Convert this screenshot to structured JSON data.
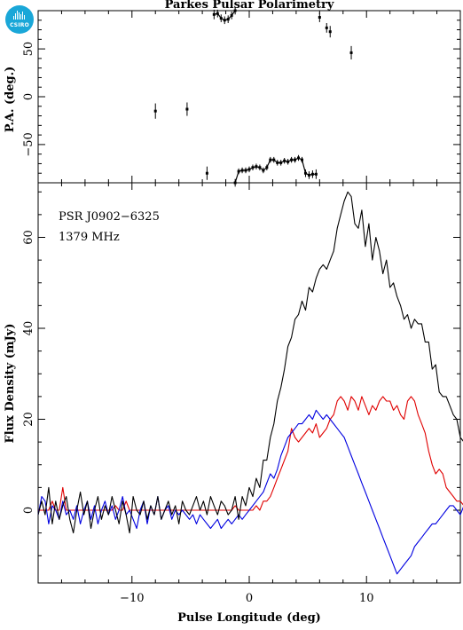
{
  "logo": {
    "text": "CSIRO",
    "color": "#1aa7d8"
  },
  "chart_data": [
    {
      "type": "scatter",
      "panel": "position-angle",
      "title": "Parkes Pulsar Polarimetry",
      "ylabel": "P.A. (deg.)",
      "xlim": [
        -18,
        18
      ],
      "ylim": [
        -90,
        90
      ],
      "yticks": [
        -50,
        0,
        50
      ],
      "grid": false,
      "color": "#000000",
      "points": [
        {
          "x": -8.0,
          "y": -15,
          "err": 8
        },
        {
          "x": -5.3,
          "y": -13,
          "err": 7
        },
        {
          "x": -3.6,
          "y": -80,
          "err": 7
        },
        {
          "x": -3.0,
          "y": 86,
          "err": 5
        },
        {
          "x": -2.7,
          "y": 87,
          "err": 4
        },
        {
          "x": -2.4,
          "y": 82,
          "err": 4
        },
        {
          "x": -2.1,
          "y": 80,
          "err": 4
        },
        {
          "x": -1.8,
          "y": 81,
          "err": 4
        },
        {
          "x": -1.5,
          "y": 85,
          "err": 4
        },
        {
          "x": -1.2,
          "y": 90,
          "err": 4
        },
        {
          "x": -1.2,
          "y": -90,
          "err": 4
        },
        {
          "x": -0.9,
          "y": -78,
          "err": 3
        },
        {
          "x": -0.6,
          "y": -77,
          "err": 3
        },
        {
          "x": -0.3,
          "y": -77,
          "err": 3
        },
        {
          "x": 0.0,
          "y": -76,
          "err": 3
        },
        {
          "x": 0.3,
          "y": -74,
          "err": 3
        },
        {
          "x": 0.6,
          "y": -73,
          "err": 3
        },
        {
          "x": 0.9,
          "y": -74,
          "err": 3
        },
        {
          "x": 1.2,
          "y": -77,
          "err": 3
        },
        {
          "x": 1.5,
          "y": -74,
          "err": 3
        },
        {
          "x": 1.8,
          "y": -66,
          "err": 3
        },
        {
          "x": 2.1,
          "y": -66,
          "err": 3
        },
        {
          "x": 2.4,
          "y": -69,
          "err": 3
        },
        {
          "x": 2.7,
          "y": -69,
          "err": 3
        },
        {
          "x": 3.0,
          "y": -67,
          "err": 3
        },
        {
          "x": 3.3,
          "y": -68,
          "err": 3
        },
        {
          "x": 3.6,
          "y": -66,
          "err": 3
        },
        {
          "x": 3.9,
          "y": -66,
          "err": 3
        },
        {
          "x": 4.2,
          "y": -64,
          "err": 3
        },
        {
          "x": 4.5,
          "y": -66,
          "err": 3
        },
        {
          "x": 4.8,
          "y": -80,
          "err": 4
        },
        {
          "x": 5.1,
          "y": -82,
          "err": 4
        },
        {
          "x": 5.4,
          "y": -81,
          "err": 4
        },
        {
          "x": 5.7,
          "y": -81,
          "err": 5
        },
        {
          "x": 6.0,
          "y": 83,
          "err": 5
        },
        {
          "x": 6.6,
          "y": 72,
          "err": 5
        },
        {
          "x": 6.9,
          "y": 68,
          "err": 6
        },
        {
          "x": 8.7,
          "y": 46,
          "err": 7
        }
      ]
    },
    {
      "type": "line",
      "panel": "profile",
      "annotations": [
        "PSR J0902−6325",
        "1379 MHz"
      ],
      "xlabel": "Pulse Longitude (deg)",
      "ylabel": "Flux Density (mJy)",
      "xlim": [
        -18,
        18
      ],
      "ylim": [
        -16,
        72
      ],
      "xticks": [
        -10,
        0,
        10
      ],
      "yticks": [
        0,
        20,
        40,
        60
      ],
      "grid": false,
      "x_start": -18,
      "x_step": 0.3,
      "series": [
        {
          "color": "#000000",
          "values": [
            -1.0,
            2.0,
            -1.0,
            5.0,
            -3.0,
            2.0,
            -2.0,
            1.0,
            3.0,
            -2.0,
            -5.0,
            0.0,
            4.0,
            -1.0,
            2.0,
            -4.0,
            0.0,
            3.0,
            -2.0,
            1.0,
            -1.0,
            3.0,
            0.0,
            -3.0,
            2.0,
            -1.0,
            -5.0,
            3.0,
            0.0,
            -1.0,
            2.0,
            -2.0,
            1.0,
            -1.0,
            3.0,
            -2.0,
            0.0,
            2.0,
            -1.0,
            1.0,
            -3.0,
            2.0,
            0.0,
            -1.0,
            1.0,
            3.0,
            0.0,
            2.0,
            -1.0,
            3.0,
            1.0,
            -1.0,
            2.0,
            1.0,
            -1.0,
            0.0,
            3.0,
            -2.0,
            3.0,
            1.0,
            5.0,
            3.0,
            7.0,
            5.0,
            11.0,
            11.0,
            16.0,
            19.0,
            24.0,
            27.0,
            31.0,
            36.0,
            38.0,
            42.0,
            43.0,
            46.0,
            44.0,
            49.0,
            48.0,
            51.0,
            53.0,
            54.0,
            53.0,
            55.0,
            57.0,
            62.0,
            65.0,
            68.0,
            70.0,
            69.0,
            63.0,
            62.0,
            66.0,
            58.0,
            63.0,
            55.0,
            60.0,
            57.0,
            52.0,
            55.0,
            49.0,
            50.0,
            47.0,
            45.0,
            42.0,
            43.0,
            40.0,
            42.0,
            41.0,
            41.0,
            37.0,
            37.0,
            31.0,
            32.0,
            26.0,
            25.0,
            25.0,
            23.0,
            21.0,
            20.0,
            16.0,
            15.0,
            16.0,
            15.0,
            12.0,
            11.0,
            8.0,
            7.0,
            8.0,
            3.0,
            5.0,
            1.0,
            3.0,
            -1.0,
            2.0,
            0.0,
            -1.0,
            2.0,
            1.0,
            -2.0,
            3.0,
            0.0,
            -1.0,
            2.0,
            1.0,
            0.0,
            -2.0,
            3.0,
            1.0,
            0.0,
            -2.0,
            2.0,
            -1.0,
            3.0,
            1.0,
            0.0,
            2.0,
            -1.0,
            1.0,
            2.0,
            0.0,
            3.0,
            0.0,
            1.0,
            -1.0,
            2.0,
            0.0,
            1.0,
            2.0,
            -1.0,
            1.0,
            3.0,
            2.0,
            1.0,
            -2.0,
            3.0,
            1.0,
            0.0,
            -1.0,
            1.0,
            2.0,
            0.0,
            1.0,
            -2.0,
            2.0,
            0.0,
            1.0,
            2.0,
            1.0,
            -1.0,
            0.0,
            3.0,
            1.0,
            -2.0,
            1.0,
            0.0
          ]
        },
        {
          "color": "#e00000",
          "values": [
            0.0,
            0.0,
            0.0,
            0.0,
            2.0,
            0.0,
            0.0,
            5.0,
            0.0,
            0.0,
            0.0,
            0.0,
            0.0,
            0.0,
            0.0,
            0.0,
            0.0,
            0.0,
            0.0,
            0.0,
            0.0,
            0.0,
            1.0,
            0.0,
            0.0,
            2.0,
            0.0,
            0.0,
            0.0,
            0.0,
            0.0,
            0.0,
            0.0,
            0.0,
            0.0,
            0.0,
            0.0,
            0.0,
            0.0,
            0.0,
            0.0,
            0.0,
            0.0,
            0.0,
            0.0,
            0.0,
            0.0,
            0.0,
            0.0,
            0.0,
            0.0,
            0.0,
            0.0,
            0.0,
            0.0,
            0.0,
            1.0,
            0.0,
            0.0,
            0.0,
            0.0,
            0.0,
            1.0,
            0.0,
            2.0,
            2.0,
            3.0,
            5.0,
            7.0,
            9.0,
            11.0,
            13.0,
            18.0,
            16.0,
            15.0,
            16.0,
            17.0,
            18.0,
            17.0,
            19.0,
            16.0,
            17.0,
            18.0,
            20.0,
            21.0,
            24.0,
            25.0,
            24.0,
            22.0,
            25.0,
            24.0,
            22.0,
            25.0,
            23.0,
            21.0,
            23.0,
            22.0,
            24.0,
            25.0,
            24.0,
            24.0,
            22.0,
            23.0,
            21.0,
            20.0,
            24.0,
            25.0,
            24.0,
            21.0,
            19.0,
            17.0,
            13.0,
            10.0,
            8.0,
            9.0,
            8.0,
            5.0,
            4.0,
            3.0,
            2.0,
            2.0,
            1.0,
            1.0,
            0.0,
            0.0,
            0.0,
            0.0,
            0.0,
            0.0,
            0.0,
            0.0,
            0.0,
            0.0,
            0.0,
            0.0,
            0.0,
            0.0,
            1.0,
            0.0,
            0.0,
            0.0,
            0.0,
            0.0,
            0.0,
            0.0,
            0.0,
            0.0,
            0.0,
            0.0,
            0.0,
            0.0,
            0.0,
            0.0,
            0.0,
            0.0,
            0.0,
            0.0,
            0.0,
            0.0,
            0.0,
            0.0,
            0.0,
            0.0,
            0.0,
            0.0,
            0.0,
            0.0,
            0.0,
            0.0,
            0.0,
            0.0,
            0.0,
            0.0,
            0.0,
            0.0,
            0.0,
            0.0,
            0.0,
            0.0,
            0.0,
            0.0,
            0.0,
            0.0,
            0.0,
            0.0,
            0.0,
            0.0,
            0.0,
            0.0,
            0.0,
            0.0,
            0.0,
            0.0,
            0.0,
            0.0,
            0.0,
            0.0
          ]
        },
        {
          "color": "#0000e0",
          "values": [
            -1.0,
            3.0,
            2.0,
            -3.0,
            1.0,
            0.0,
            -2.0,
            2.0,
            -1.0,
            0.0,
            -2.0,
            1.0,
            -3.0,
            0.0,
            2.0,
            -2.0,
            1.0,
            -3.0,
            0.0,
            2.0,
            -1.0,
            1.0,
            -2.0,
            0.0,
            3.0,
            -1.0,
            0.0,
            -2.0,
            -4.0,
            0.0,
            2.0,
            -3.0,
            1.0,
            -1.0,
            3.0,
            -2.0,
            0.0,
            1.0,
            -2.0,
            0.0,
            -1.0,
            0.0,
            -1.0,
            -2.0,
            -1.0,
            -3.0,
            -1.0,
            -2.0,
            -3.0,
            -4.0,
            -3.0,
            -2.0,
            -4.0,
            -3.0,
            -2.0,
            -3.0,
            -2.0,
            -1.0,
            -2.0,
            -1.0,
            0.0,
            1.0,
            2.0,
            3.0,
            4.0,
            6.0,
            8.0,
            7.0,
            9.0,
            12.0,
            14.0,
            16.0,
            17.0,
            18.0,
            19.0,
            19.0,
            20.0,
            21.0,
            20.0,
            22.0,
            21.0,
            20.0,
            21.0,
            20.0,
            19.0,
            18.0,
            17.0,
            16.0,
            14.0,
            12.0,
            10.0,
            8.0,
            6.0,
            4.0,
            2.0,
            0.0,
            -2.0,
            -4.0,
            -6.0,
            -8.0,
            -10.0,
            -12.0,
            -14.0,
            -13.0,
            -12.0,
            -11.0,
            -10.0,
            -8.0,
            -7.0,
            -6.0,
            -5.0,
            -4.0,
            -3.0,
            -3.0,
            -2.0,
            -1.0,
            0.0,
            1.0,
            1.0,
            0.0,
            -1.0,
            1.0,
            0.0,
            -1.0,
            2.0,
            1.0,
            0.0,
            -1.0,
            1.0,
            0.0,
            2.0,
            -1.0,
            1.0,
            0.0,
            -1.0,
            2.0,
            1.0,
            -2.0,
            0.0,
            1.0,
            -1.0,
            0.0,
            2.0,
            -1.0,
            1.0,
            0.0,
            -2.0,
            1.0,
            0.0,
            2.0,
            -1.0,
            0.0,
            1.0,
            -1.0,
            0.0,
            2.0,
            1.0,
            0.0,
            -1.0,
            1.0,
            0.0,
            -2.0,
            1.0,
            0.0,
            2.0,
            -1.0,
            0.0,
            1.0,
            -1.0,
            0.0,
            2.0,
            0.0,
            -1.0,
            1.0,
            0.0,
            -2.0,
            1.0,
            0.0,
            2.0,
            -1.0,
            0.0,
            1.0,
            -1.0,
            0.0,
            1.0,
            0.0,
            -1.0,
            1.0,
            0.0,
            -1.0,
            1.0
          ]
        }
      ]
    }
  ]
}
